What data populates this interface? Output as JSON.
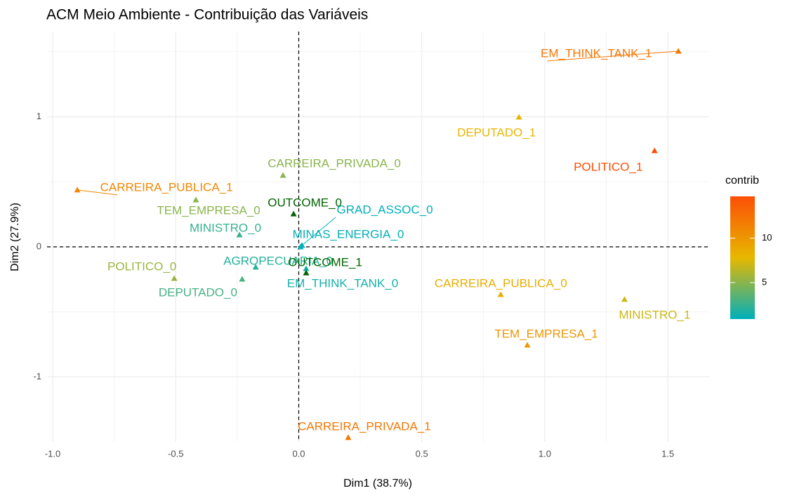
{
  "chart_data": {
    "type": "scatter",
    "title": "ACM Meio Ambiente - Contribuição das Variáveis",
    "x_label": "Dim1 (38.7%)",
    "y_label": "Dim2 (27.9%)",
    "xlim": [
      -1.023,
      1.668
    ],
    "ylim": [
      -1.499,
      1.655
    ],
    "xticks": [
      {
        "value": -1,
        "label": "-1.0"
      },
      -0.5,
      {
        "value": 0,
        "label": "0.0"
      },
      0.5,
      {
        "value": 1,
        "label": "1.0"
      },
      1.5
    ],
    "yticks": [
      -1,
      0,
      1
    ],
    "grid": true,
    "hline": 0,
    "vline": 0,
    "color_scale": {
      "title": "contrib",
      "colors": [
        "#00AFBB",
        "#E7B800",
        "#FC4E07"
      ],
      "lim": [
        0.9,
        14.7
      ],
      "ticks": [
        5,
        10
      ]
    },
    "points": [
      {
        "label": "EM_THINK_TANK_1",
        "x": 1.543,
        "y": 1.504,
        "contrib": 12
      },
      {
        "label": "DEPUTADO_1",
        "x": 0.895,
        "y": 0.997,
        "contrib": 8
      },
      {
        "label": "POLITICO_1",
        "x": 1.446,
        "y": 0.739,
        "contrib": 14.7
      },
      {
        "label": "CARREIRA_PRIVADA_0",
        "x": -0.064,
        "y": 0.55,
        "contrib": 5
      },
      {
        "label": "CARREIRA_PUBLICA_1",
        "x": -0.9,
        "y": 0.437,
        "contrib": 11
      },
      {
        "label": "TEM_EMPRESA_0",
        "x": -0.418,
        "y": 0.361,
        "contrib": 5
      },
      {
        "label": "MINISTRO_0",
        "x": -0.241,
        "y": 0.092,
        "contrib": 2.5
      },
      {
        "label": "GRAD_ASSOC_0",
        "x": 0.013,
        "y": 0.011,
        "contrib": 0.9
      },
      {
        "label": "MINAS_ENERGIA_0",
        "x": 0.007,
        "y": 0.0,
        "contrib": 1
      },
      {
        "label": "AGROPECUARIA_0",
        "x": -0.175,
        "y": -0.156,
        "contrib": 2
      },
      {
        "label": "POLITICO_0",
        "x": -0.506,
        "y": -0.243,
        "contrib": 5.5
      },
      {
        "label": "DEPUTADO_0",
        "x": -0.23,
        "y": -0.248,
        "contrib": 3
      },
      {
        "label": "EM_THINK_TANK_0",
        "x": 0.03,
        "y": -0.167,
        "contrib": 1.5
      },
      {
        "label": "CARREIRA_PUBLICA_0",
        "x": 0.821,
        "y": -0.367,
        "contrib": 8.5
      },
      {
        "label": "MINISTRO_1",
        "x": 1.324,
        "y": -0.404,
        "contrib": 7
      },
      {
        "label": "TEM_EMPRESA_1",
        "x": 0.929,
        "y": -0.755,
        "contrib": 10
      },
      {
        "label": "CARREIRA_PRIVADA_1",
        "x": 0.201,
        "y": -1.466,
        "contrib": 12
      }
    ],
    "supplementary": {
      "color": "#006400",
      "points": [
        {
          "label": "OUTCOME_0",
          "x": -0.021,
          "y": 0.253
        },
        {
          "label": "OUTCOME_1",
          "x": 0.03,
          "y": -0.2
        }
      ]
    }
  }
}
